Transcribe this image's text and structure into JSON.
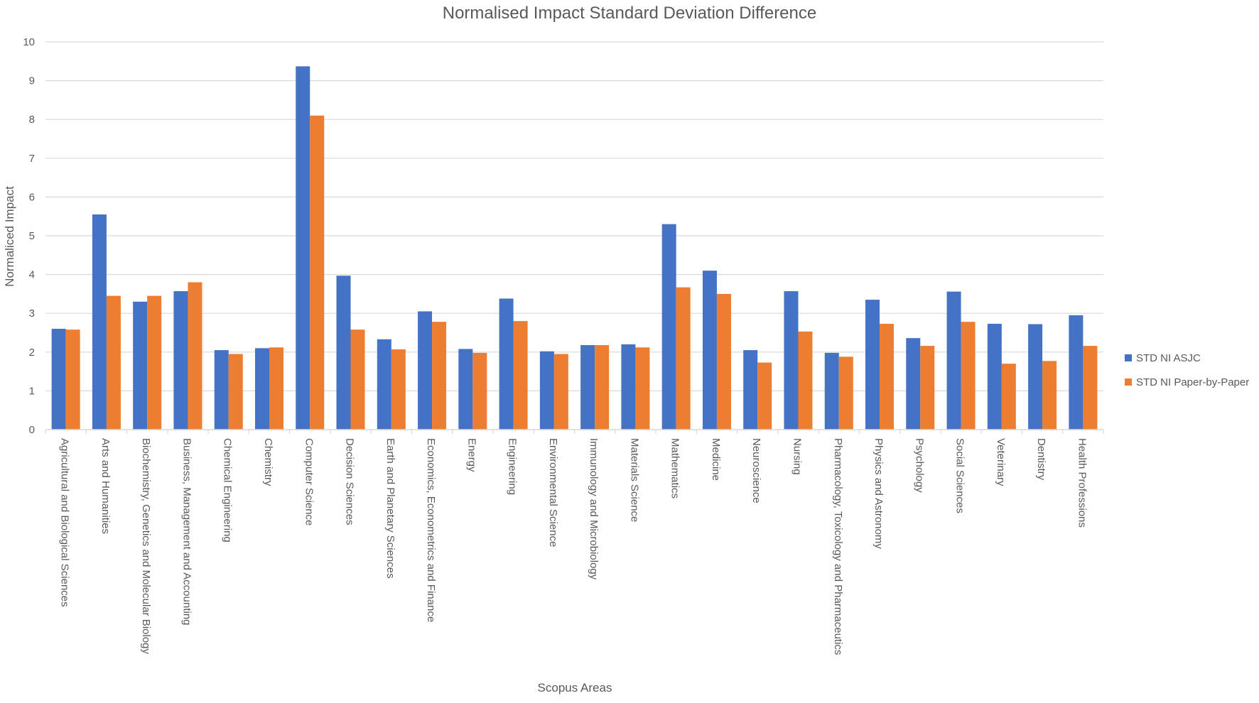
{
  "chart_data": {
    "type": "bar",
    "title": "Normalised Impact Standard Deviation Difference",
    "xlabel": "Scopus Areas",
    "ylabel": "Normaliced Impact",
    "ylim": [
      0,
      10
    ],
    "yticks": [
      "0",
      "1",
      "2",
      "3",
      "4",
      "5",
      "6",
      "7",
      "8",
      "9",
      "10"
    ],
    "grid": true,
    "legend_position": "right",
    "categories": [
      "Agricultural and Biological Sciences",
      "Arts and Humanities",
      "Biochemistry, Genetics and Molecular Biology",
      "Business, Management and Accounting",
      "Chemical Engineering",
      "Chemistry",
      "Computer Science",
      "Decision Sciences",
      "Earth and Planetary Sciences",
      "Economics, Econometrics and Finance",
      "Energy",
      "Engineering",
      "Environmental Science",
      "Immunology and Microbiology",
      "Materials Science",
      "Mathematics",
      "Medicine",
      "Neuroscience",
      "Nursing",
      "Pharmacology, Toxicology and Pharmaceutics",
      "Physics and Astronomy",
      "Psychology",
      "Social Sciences",
      "Veterinary",
      "Dentistry",
      "Health Professions"
    ],
    "series": [
      {
        "name": "STD NI ASJC",
        "color": "#4472C4",
        "values": [
          2.6,
          5.55,
          3.3,
          3.57,
          2.05,
          2.1,
          9.37,
          3.97,
          2.33,
          3.05,
          2.08,
          3.38,
          2.02,
          2.18,
          2.2,
          5.3,
          4.1,
          2.05,
          3.57,
          1.98,
          3.35,
          2.36,
          3.56,
          2.73,
          2.72,
          2.95
        ]
      },
      {
        "name": "STD NI Paper-by-Paper",
        "color": "#ED7D31",
        "values": [
          2.58,
          3.45,
          3.45,
          3.8,
          1.95,
          2.12,
          8.1,
          2.58,
          2.07,
          2.78,
          1.98,
          2.8,
          1.95,
          2.18,
          2.12,
          3.67,
          3.5,
          1.73,
          2.53,
          1.88,
          2.73,
          2.16,
          2.78,
          1.7,
          1.77,
          2.16
        ]
      }
    ]
  }
}
